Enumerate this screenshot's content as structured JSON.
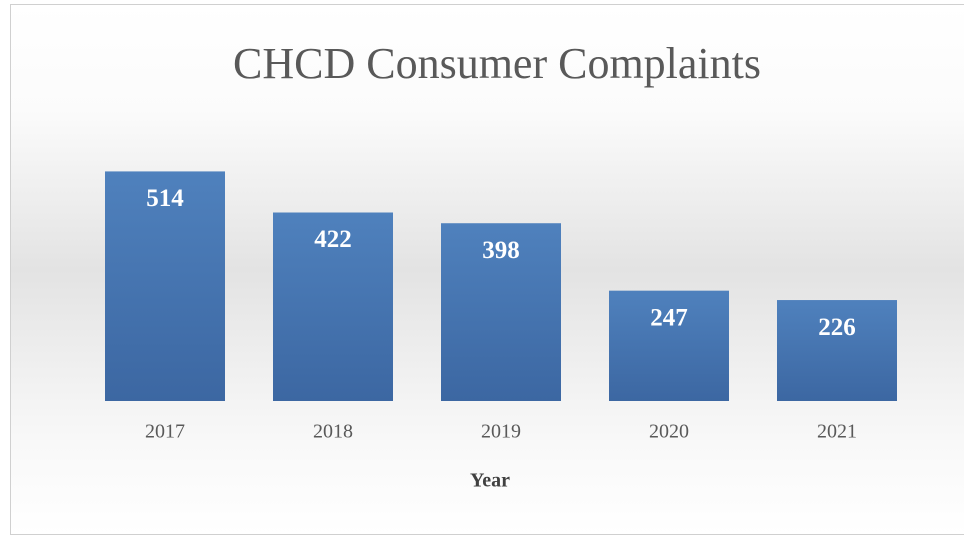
{
  "chart_data": {
    "type": "bar",
    "title": "CHCD Consumer Complaints",
    "x_label": "Year",
    "categories": [
      "2017",
      "2018",
      "2019",
      "2020",
      "2021"
    ],
    "values": [
      514,
      422,
      398,
      247,
      226
    ],
    "color": "#4a7bbb",
    "ylim": [
      0,
      600
    ]
  }
}
